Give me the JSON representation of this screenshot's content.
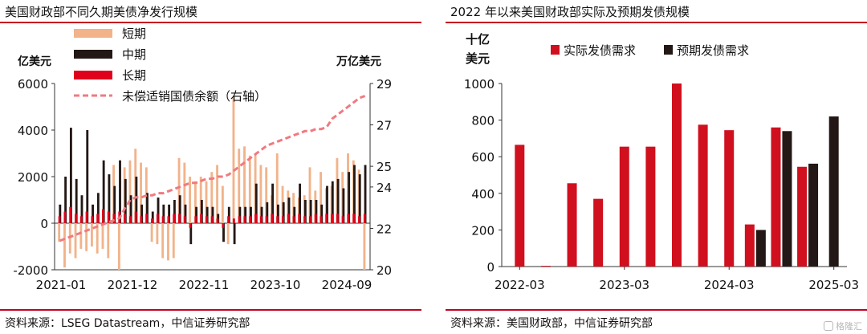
{
  "panels": {
    "left": {
      "title": "美国财政部不同久期美债净发行规模",
      "source": "资料来源：LSEG Datastream，中信证券研究部"
    },
    "right": {
      "title": "2022 年以来美国财政部实际及预期发债规模",
      "source": "资料来源：美国财政部，中信证券研究部"
    }
  },
  "watermark": "格隆汇",
  "colors": {
    "short": "#f2b38a",
    "mid": "#231815",
    "long": "#e0001b",
    "debt_line": "#f07a80",
    "actual": "#d0101e",
    "expected": "#231815",
    "rule": "#c4001f"
  },
  "chart_data": [
    {
      "type": "bar",
      "subtype": "grouped-bar-with-line",
      "title": "美国财政部不同久期美债净发行规模",
      "ylabel_left": "亿美元",
      "ylabel_right": "万亿美元",
      "ylim_left": [
        -2000,
        6000
      ],
      "yticks_left": [
        "-2000",
        "0",
        "2000",
        "4000",
        "6000"
      ],
      "ylim_right": [
        20,
        29
      ],
      "yticks_right": [
        "20",
        "22",
        "24",
        "25",
        "27",
        "29"
      ],
      "xtick_labels": [
        "2021-01",
        "2021-12",
        "2022-11",
        "2023-10",
        "2024-09"
      ],
      "legend_position": "top-left",
      "grid": false,
      "series": [
        {
          "name": "短期",
          "values": [
            -800,
            -1900,
            -1300,
            -1500,
            -1100,
            -1200,
            -1000,
            -1300,
            -1100,
            -1500,
            2500,
            -2000,
            2400,
            2700,
            3200,
            2600,
            2400,
            -800,
            -900,
            -1500,
            -1600,
            -1500,
            2800,
            2600,
            2000,
            1800,
            2000,
            1800,
            2200,
            2500,
            1600,
            -900,
            5400,
            3200,
            3300,
            2900,
            3000,
            2500,
            2400,
            1200,
            3000,
            1600,
            1400,
            1300,
            1100,
            1200,
            2400,
            1400,
            2200,
            1500,
            1600,
            2800,
            2200,
            3000,
            2700,
            2300,
            -2000
          ]
        },
        {
          "name": "中期",
          "values": [
            800,
            2000,
            4100,
            1900,
            1200,
            4000,
            800,
            1300,
            2700,
            2100,
            1600,
            2700,
            1900,
            1200,
            2000,
            800,
            1300,
            500,
            1100,
            800,
            800,
            1000,
            1200,
            800,
            -900,
            700,
            1000,
            700,
            700,
            400,
            -800,
            700,
            -900,
            700,
            700,
            700,
            1700,
            700,
            900,
            1700,
            800,
            900,
            1100,
            700,
            1700,
            1000,
            1000,
            1000,
            800,
            1600,
            1800,
            1900,
            1500,
            2200,
            2500,
            2100,
            2500
          ]
        },
        {
          "name": "长期",
          "values": [
            300,
            500,
            700,
            400,
            300,
            500,
            300,
            400,
            600,
            500,
            400,
            500,
            400,
            300,
            500,
            300,
            400,
            200,
            400,
            300,
            300,
            400,
            400,
            300,
            -200,
            300,
            400,
            300,
            300,
            200,
            -200,
            300,
            200,
            300,
            300,
            300,
            400,
            300,
            300,
            400,
            300,
            300,
            400,
            300,
            400,
            300,
            300,
            400,
            300,
            400,
            400,
            400,
            300,
            400,
            400,
            300,
            400
          ]
        }
      ],
      "line": {
        "name": "未偿适销国债余额（右轴）",
        "axis": "right",
        "values": [
          21.4,
          21.5,
          21.6,
          21.7,
          21.8,
          21.9,
          22.0,
          22.1,
          22.2,
          22.3,
          22.4,
          22.5,
          23.0,
          23.4,
          23.5,
          23.5,
          23.6,
          23.6,
          23.7,
          23.7,
          23.8,
          23.9,
          24.0,
          24.1,
          24.2,
          24.2,
          24.3,
          24.4,
          24.4,
          24.5,
          24.5,
          24.6,
          24.8,
          25.0,
          25.2,
          25.4,
          25.6,
          25.8,
          26.0,
          26.1,
          26.2,
          26.3,
          26.4,
          26.5,
          26.6,
          26.7,
          26.7,
          26.8,
          26.8,
          26.9,
          27.3,
          27.5,
          27.7,
          27.9,
          28.1,
          28.3,
          28.4
        ]
      }
    },
    {
      "type": "bar",
      "subtype": "grouped-bar",
      "title": "2022 年以来美国财政部实际及预期发债规模",
      "ylabel": "十亿美元",
      "ylim": [
        0,
        1000
      ],
      "yticks": [
        "0",
        "200",
        "400",
        "600",
        "800",
        "1000"
      ],
      "xtick_labels": [
        "2022-03",
        "2023-03",
        "2024-03",
        "2025-03"
      ],
      "legend_position": "top",
      "grid": false,
      "n_periods": 13,
      "series": [
        {
          "name": "实际发债需求",
          "values": [
            665,
            4,
            455,
            370,
            655,
            655,
            1000,
            775,
            745,
            230,
            760,
            545,
            null
          ]
        },
        {
          "name": "预期发债需求",
          "values": [
            null,
            null,
            null,
            null,
            null,
            null,
            null,
            null,
            null,
            200,
            740,
            562,
            820
          ]
        }
      ]
    }
  ]
}
